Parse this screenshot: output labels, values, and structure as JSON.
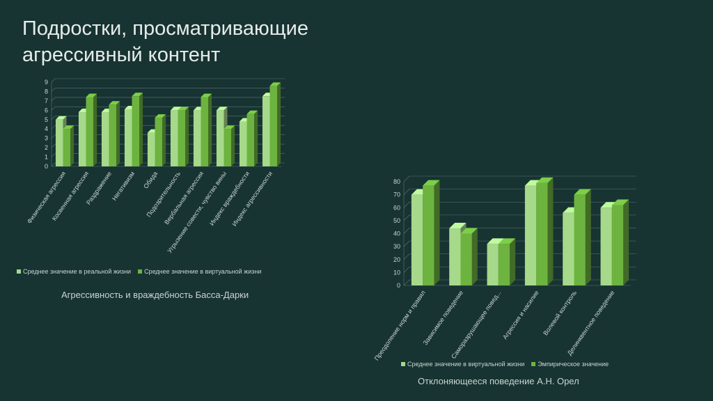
{
  "title": {
    "line1": "Подростки, просматривающие",
    "line2": "агрессивный контент"
  },
  "colors": {
    "background": "#173332",
    "series_light": "#a6d98a",
    "series_dark": "#6db33f"
  },
  "chart_data": [
    {
      "type": "bar",
      "caption": "Агрессивность и враждебность Басса-Дарки",
      "categories": [
        "Физическая агрессия",
        "Косвенная агрессия",
        "Раздражение",
        "Негативизм",
        "Обида",
        "Подозрительность",
        "Вербальная агрессия",
        "Угрызение совести, чувство вины",
        "Индекс враждебности",
        "Индекс агрессивности"
      ],
      "series": [
        {
          "name": "Среднее значение в реальной жизни",
          "values": [
            5,
            5.8,
            5.8,
            6.1,
            3.6,
            6,
            6,
            6,
            4.8,
            7.5
          ]
        },
        {
          "name": "Среднее значение в виртуальной жизни",
          "values": [
            4,
            7.4,
            6.6,
            7.5,
            5.2,
            6,
            7.4,
            4,
            5.6,
            8.6
          ]
        }
      ],
      "yticks": [
        "0",
        "1",
        "2",
        "3",
        "4",
        "5",
        "6",
        "7",
        "8",
        "9"
      ],
      "ylim": [
        0,
        9
      ],
      "legend": "bottom"
    },
    {
      "type": "bar",
      "caption": "Отклоняющееся поведение А.Н. Орел",
      "categories": [
        "Преодоление норм и правил",
        "Зависимое поведение",
        "Саморазрушающее повед...",
        "Агрессия и насилие",
        "Волевой контроль",
        "Делинквентное поведение"
      ],
      "series": [
        {
          "name": "Среднее значение в виртуальной жизни",
          "values": [
            70,
            44,
            32,
            77,
            56,
            60
          ]
        },
        {
          "name": "Эмпирическое значение",
          "values": [
            77,
            40,
            32,
            79,
            70,
            62
          ]
        }
      ],
      "yticks": [
        "0",
        "10",
        "20",
        "30",
        "40",
        "50",
        "60",
        "70",
        "80"
      ],
      "ylim": [
        0,
        80
      ],
      "legend": "bottom"
    }
  ]
}
